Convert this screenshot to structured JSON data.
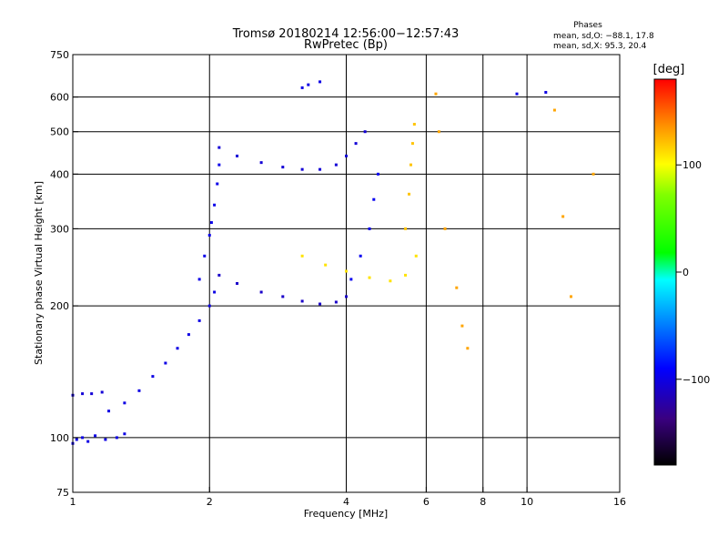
{
  "chart_data": {
    "type": "scatter",
    "title": "Tromsø 20180214 12:56:00−12:57:43",
    "subtitle": "RwPretec (Bp)",
    "stats": {
      "heading": "Phases",
      "line1": "mean, sd,O: −88.1, 17.8",
      "line2": "mean, sd,X:  95.3, 20.4"
    },
    "xlabel": "Frequency [MHz]",
    "ylabel": "Stationary phase Virtual Height [km]",
    "x_scale": "log2",
    "y_scale": "log",
    "xlim": [
      1,
      16
    ],
    "ylim": [
      75,
      750
    ],
    "x_ticks": [
      {
        "v": 1,
        "label": "1"
      },
      {
        "v": 2,
        "label": "2"
      },
      {
        "v": 4,
        "label": "4"
      },
      {
        "v": 6,
        "label": "6"
      },
      {
        "v": 8,
        "label": "8"
      },
      {
        "v": 10,
        "label": "10"
      },
      {
        "v": 16,
        "label": "16"
      }
    ],
    "y_ticks": [
      {
        "v": 75,
        "label": "75"
      },
      {
        "v": 100,
        "label": "100"
      },
      {
        "v": 200,
        "label": "200"
      },
      {
        "v": 300,
        "label": "300"
      },
      {
        "v": 400,
        "label": "400"
      },
      {
        "v": 500,
        "label": "500"
      },
      {
        "v": 600,
        "label": "600"
      },
      {
        "v": 750,
        "label": "750"
      }
    ],
    "x_gridlines": [
      2,
      4,
      6,
      8,
      10
    ],
    "y_gridlines": [
      100,
      200,
      300,
      400,
      500,
      600
    ],
    "grid": true,
    "colorbar": {
      "unit_label": "[deg]",
      "range": [
        -180,
        180
      ],
      "ticks": [
        {
          "v": 100,
          "label": "100"
        },
        {
          "v": 0,
          "label": "0"
        },
        {
          "v": -100,
          "label": "−100"
        }
      ]
    },
    "series": [
      {
        "phase": -100,
        "x": [
          1.0,
          1.02,
          1.05,
          1.08,
          1.12,
          1.18,
          1.25,
          1.3
        ],
        "y": [
          97,
          99,
          100,
          98,
          101,
          99,
          100,
          102
        ]
      },
      {
        "phase": -105,
        "x": [
          1.0,
          1.05,
          1.1,
          1.16
        ],
        "y": [
          125,
          126,
          126,
          127
        ]
      },
      {
        "phase": -100,
        "x": [
          1.2,
          1.3,
          1.4,
          1.5,
          1.6,
          1.7,
          1.8,
          1.9,
          2.0,
          2.05
        ],
        "y": [
          115,
          120,
          128,
          138,
          148,
          160,
          172,
          185,
          200,
          215
        ]
      },
      {
        "phase": -98,
        "x": [
          1.9,
          1.95,
          2.0,
          2.02,
          2.05,
          2.08,
          2.1
        ],
        "y": [
          230,
          260,
          290,
          310,
          340,
          380,
          420
        ]
      },
      {
        "phase": -105,
        "x": [
          2.1,
          2.3,
          2.6,
          2.9,
          3.2,
          3.5,
          3.8,
          4.0,
          4.2,
          4.4
        ],
        "y": [
          460,
          440,
          425,
          415,
          410,
          410,
          420,
          440,
          470,
          500
        ]
      },
      {
        "phase": -110,
        "x": [
          2.1,
          2.3,
          2.6,
          2.9,
          3.2,
          3.5,
          3.8,
          4.0
        ],
        "y": [
          235,
          225,
          215,
          210,
          205,
          202,
          204,
          210
        ]
      },
      {
        "phase": -95,
        "x": [
          4.1,
          4.3,
          4.5,
          4.6,
          4.7
        ],
        "y": [
          230,
          260,
          300,
          350,
          400
        ]
      },
      {
        "phase": 110,
        "x": [
          3.2,
          3.6,
          4.0,
          4.5,
          5.0,
          5.4,
          5.7
        ],
        "y": [
          260,
          248,
          240,
          232,
          228,
          235,
          260
        ]
      },
      {
        "phase": 120,
        "x": [
          5.4,
          5.5,
          5.55,
          5.6,
          5.65
        ],
        "y": [
          300,
          360,
          420,
          470,
          520
        ]
      },
      {
        "phase": 130,
        "x": [
          6.3,
          6.4,
          6.6,
          7.0,
          7.2,
          7.4,
          11.5,
          12.0,
          12.5,
          14.0
        ],
        "y": [
          610,
          500,
          300,
          220,
          180,
          160,
          560,
          320,
          210,
          400
        ]
      },
      {
        "phase": -100,
        "x": [
          3.2,
          3.3,
          3.5,
          9.5,
          11.0
        ],
        "y": [
          630,
          640,
          650,
          610,
          615
        ]
      }
    ]
  }
}
